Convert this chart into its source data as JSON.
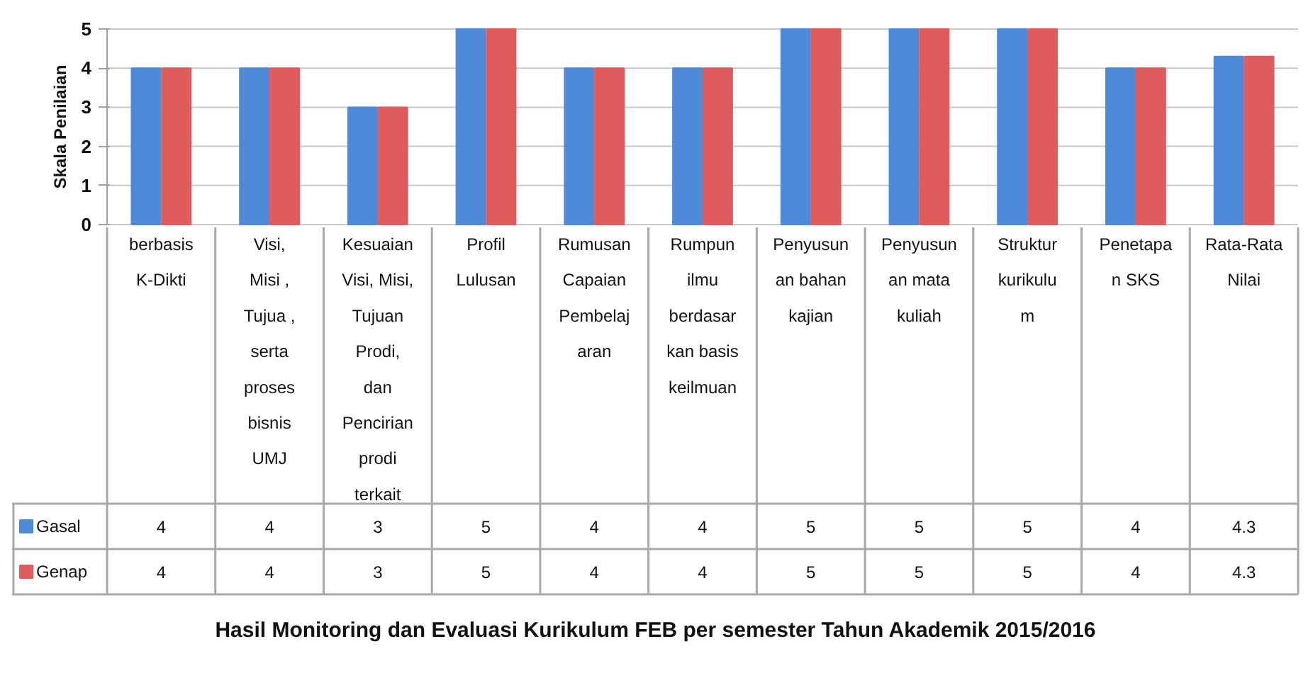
{
  "chart_data": {
    "type": "bar",
    "title": "Hasil Monitoring dan Evaluasi Kurikulum FEB per semester Tahun Akademik 2015/2016",
    "ylabel": "Skala Penilaian",
    "categories": [
      "berbasis\nK-Dikti",
      "Visi,\nMisi ,\nTujua ,\nserta\nproses\nbisnis\nUMJ",
      "Kesuaian\nVisi, Misi,\nTujuan\nProdi,\ndan\nPencirian\nprodi\nterkait",
      "Profil\nLulusan",
      "Rumusan\nCapaian\nPembelaj\naran",
      "Rumpun\nilmu\nberdasar\nkan basis\nkeilmuan",
      "Penyusun\nan bahan\nkajian",
      "Penyusun\nan mata\nkuliah",
      "Struktur\nkurikulu\nm",
      "Penetapa\nn SKS",
      "Rata-Rata\nNilai"
    ],
    "series": [
      {
        "name": "Gasal",
        "color": "#4f8ad8",
        "values": [
          4,
          4,
          3,
          5,
          4,
          4,
          5,
          5,
          5,
          4,
          4.3
        ]
      },
      {
        "name": "Genap",
        "color": "#e05c5c",
        "values": [
          4,
          4,
          3,
          5,
          4,
          4,
          5,
          5,
          5,
          4,
          4.3
        ]
      }
    ],
    "ylim": [
      0,
      5
    ],
    "yticks": [
      0,
      1,
      2,
      3,
      4,
      5
    ],
    "grid": "y",
    "legend": "bottom left",
    "data_labels": true
  }
}
